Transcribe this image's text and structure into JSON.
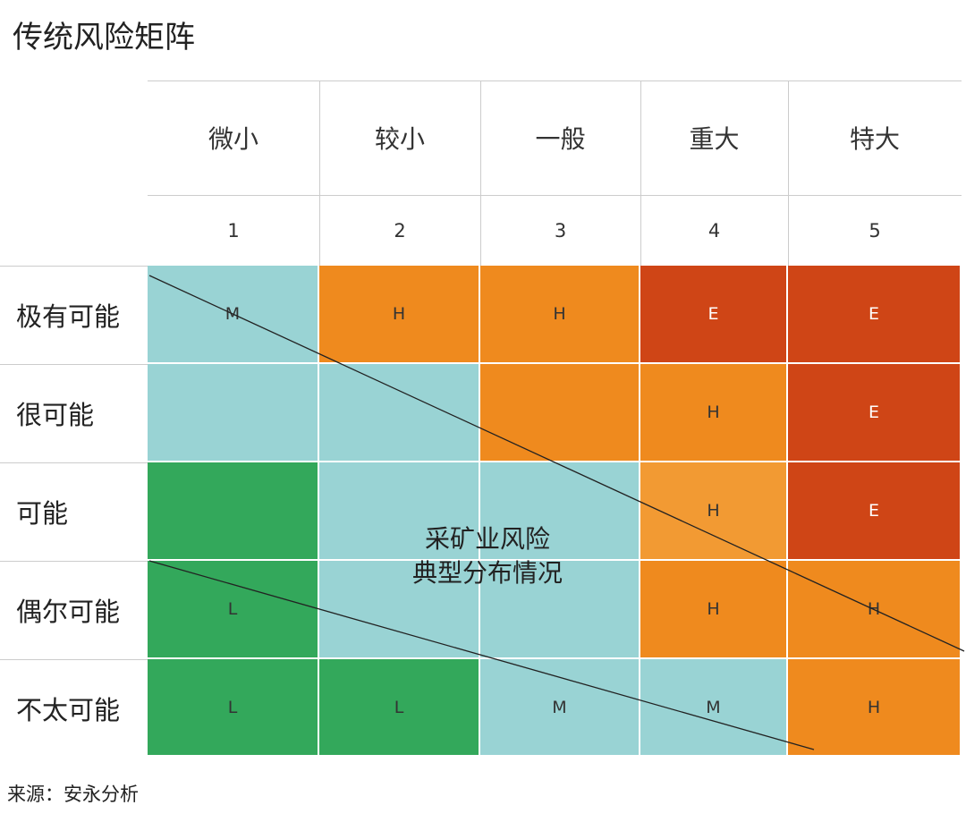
{
  "title": "传统风险矩阵",
  "columns": [
    {
      "label": "微小",
      "number": "1"
    },
    {
      "label": "较小",
      "number": "2"
    },
    {
      "label": "一般",
      "number": "3"
    },
    {
      "label": "重大",
      "number": "4"
    },
    {
      "label": "特大",
      "number": "5"
    }
  ],
  "rows": [
    {
      "label": "极有可能",
      "cells": [
        "M",
        "H",
        "H",
        "E",
        "E"
      ],
      "levels": [
        "M",
        "H",
        "H",
        "E",
        "E"
      ]
    },
    {
      "label": "很可能",
      "cells": [
        "",
        "",
        "",
        "H",
        "E"
      ],
      "levels": [
        "M",
        "M",
        "H",
        "H",
        "E"
      ]
    },
    {
      "label": "可能",
      "cells": [
        "",
        "",
        "",
        "H",
        "E"
      ],
      "levels": [
        "L",
        "M",
        "M",
        "H2",
        "E"
      ]
    },
    {
      "label": "偶尔可能",
      "cells": [
        "L",
        "",
        "",
        "H",
        "H"
      ],
      "levels": [
        "L",
        "M",
        "M",
        "H",
        "H"
      ]
    },
    {
      "label": "不太可能",
      "cells": [
        "L",
        "L",
        "M",
        "M",
        "H"
      ],
      "levels": [
        "L",
        "L",
        "M",
        "M",
        "H"
      ]
    }
  ],
  "level_colors": {
    "L": "#33a85b",
    "M": "#99d3d4",
    "H": "#ef8a1e",
    "H2": "#f29a33",
    "E": "#cf4516"
  },
  "center_note": [
    "采矿业风险",
    "典型分布情况"
  ],
  "source": "来源：安永分析"
}
